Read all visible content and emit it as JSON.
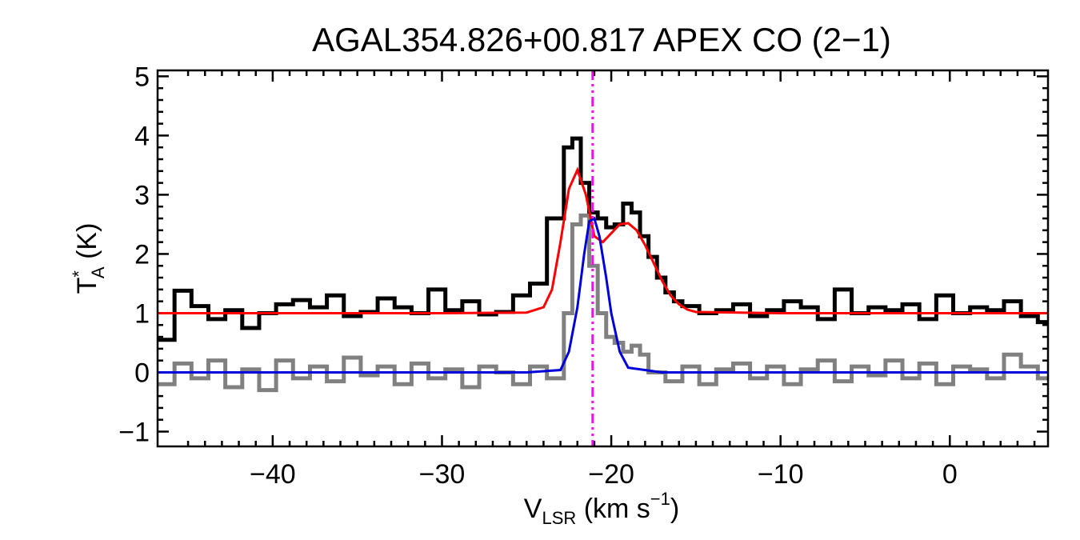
{
  "chart_data": {
    "type": "line",
    "title": "AGAL354.826+00.817  APEX CO (2−1)",
    "xlabel": {
      "main": "V",
      "sub": "LSR",
      "units": " (km s",
      "sup": "−1",
      "close": ")"
    },
    "ylabel": {
      "main": "T",
      "sup": "*",
      "sub": "A",
      "units": " (K)"
    },
    "xlim": [
      -46.8,
      5.8
    ],
    "ylim": [
      -1.25,
      5.1
    ],
    "x_ticks": [
      -40,
      -30,
      -20,
      -10,
      0
    ],
    "x_tick_labels": [
      "−40",
      "−30",
      "−20",
      "−10",
      "0"
    ],
    "y_ticks": [
      -1,
      0,
      1,
      2,
      3,
      4,
      5
    ],
    "y_tick_labels": [
      "−1",
      "0",
      "1",
      "2",
      "3",
      "4",
      "5"
    ],
    "reference_velocity": -21.1,
    "colors": {
      "observed_offset": "#000000",
      "observed_residual": "#808080",
      "fit_total": "#ff0000",
      "fit_component": "#0000dd",
      "reference_line": "#ff00ff"
    },
    "series": [
      {
        "key": "observed_offset",
        "style": "histogram",
        "x": [
          -46.8,
          -45.8,
          -44.8,
          -43.8,
          -42.8,
          -41.8,
          -40.8,
          -39.8,
          -38.8,
          -37.8,
          -36.8,
          -35.8,
          -34.8,
          -33.8,
          -32.8,
          -31.8,
          -30.8,
          -29.8,
          -28.8,
          -27.8,
          -26.8,
          -25.8,
          -24.8,
          -23.8,
          -22.8,
          -22.3,
          -21.8,
          -21.3,
          -20.8,
          -20.3,
          -19.8,
          -19.3,
          -18.8,
          -18.3,
          -17.8,
          -17.3,
          -16.8,
          -16.3,
          -15.8,
          -14.8,
          -13.8,
          -12.8,
          -11.8,
          -10.8,
          -9.8,
          -8.8,
          -7.8,
          -6.8,
          -5.8,
          -4.8,
          -3.8,
          -2.8,
          -1.8,
          -0.8,
          0.2,
          1.2,
          2.2,
          3.2,
          4.2,
          5.2
        ],
        "y": [
          0.55,
          1.38,
          1.12,
          0.9,
          1.05,
          0.75,
          1.0,
          1.15,
          1.22,
          1.1,
          1.3,
          0.95,
          1.02,
          1.25,
          1.1,
          1.0,
          1.4,
          1.05,
          1.2,
          0.98,
          1.02,
          1.3,
          1.5,
          2.6,
          3.8,
          3.95,
          3.2,
          2.7,
          2.6,
          2.45,
          2.5,
          2.85,
          2.7,
          2.3,
          1.95,
          1.6,
          1.35,
          1.2,
          1.12,
          1.0,
          1.05,
          1.15,
          0.95,
          1.05,
          1.2,
          1.1,
          0.9,
          1.4,
          1.0,
          1.1,
          1.05,
          1.15,
          0.9,
          1.3,
          1.0,
          1.1,
          1.05,
          1.2,
          0.95,
          0.85
        ]
      },
      {
        "key": "observed_residual",
        "style": "histogram",
        "x": [
          -46.8,
          -45.8,
          -44.8,
          -43.8,
          -42.8,
          -41.8,
          -40.8,
          -39.8,
          -38.8,
          -37.8,
          -36.8,
          -35.8,
          -34.8,
          -33.8,
          -32.8,
          -31.8,
          -30.8,
          -29.8,
          -28.8,
          -27.8,
          -26.8,
          -25.8,
          -24.8,
          -23.8,
          -22.8,
          -22.3,
          -21.8,
          -21.3,
          -20.8,
          -20.3,
          -19.8,
          -19.3,
          -18.8,
          -18.3,
          -17.8,
          -16.8,
          -15.8,
          -14.8,
          -13.8,
          -12.8,
          -11.8,
          -10.8,
          -9.8,
          -8.8,
          -7.8,
          -6.8,
          -5.8,
          -4.8,
          -3.8,
          -2.8,
          -1.8,
          -0.8,
          0.2,
          1.2,
          2.2,
          3.2,
          4.2,
          5.2
        ],
        "y": [
          -0.2,
          0.15,
          -0.1,
          0.2,
          -0.25,
          0.05,
          -0.3,
          0.2,
          -0.1,
          0.1,
          -0.15,
          0.25,
          -0.05,
          0.1,
          -0.2,
          0.15,
          -0.1,
          0.05,
          -0.25,
          0.1,
          0.0,
          -0.2,
          0.1,
          -0.1,
          1.0,
          2.5,
          2.65,
          1.8,
          1.0,
          0.6,
          0.5,
          0.35,
          0.45,
          0.3,
          0.0,
          -0.15,
          0.1,
          -0.2,
          0.05,
          0.15,
          -0.1,
          0.1,
          -0.2,
          0.05,
          0.2,
          -0.15,
          0.1,
          -0.05,
          0.2,
          -0.1,
          0.15,
          -0.2,
          0.1,
          0.05,
          -0.1,
          0.3,
          0.1,
          -0.1
        ]
      },
      {
        "key": "fit_total",
        "style": "line",
        "x": [
          -46.8,
          -30,
          -25,
          -24,
          -23.5,
          -23,
          -22.5,
          -22,
          -21.5,
          -21,
          -20.5,
          -20,
          -19.5,
          -19,
          -18.5,
          -18,
          -17.5,
          -17,
          -16.5,
          -16,
          -15.5,
          -15,
          -10,
          0,
          5.8
        ],
        "y": [
          1.0,
          1.0,
          1.01,
          1.1,
          1.4,
          2.2,
          3.1,
          3.42,
          3.0,
          2.3,
          2.2,
          2.35,
          2.5,
          2.52,
          2.4,
          2.15,
          1.85,
          1.55,
          1.3,
          1.15,
          1.06,
          1.02,
          1.0,
          1.0,
          1.0
        ]
      },
      {
        "key": "fit_component",
        "style": "line",
        "x": [
          -46.8,
          -25,
          -23,
          -22.5,
          -22,
          -21.6,
          -21.3,
          -21.0,
          -20.7,
          -20.3,
          -20.0,
          -19.5,
          -19.0,
          -17,
          5.8
        ],
        "y": [
          0.0,
          0.0,
          0.04,
          0.35,
          1.1,
          2.0,
          2.55,
          2.6,
          2.3,
          1.6,
          1.0,
          0.35,
          0.08,
          0.0,
          0.0
        ]
      }
    ]
  }
}
